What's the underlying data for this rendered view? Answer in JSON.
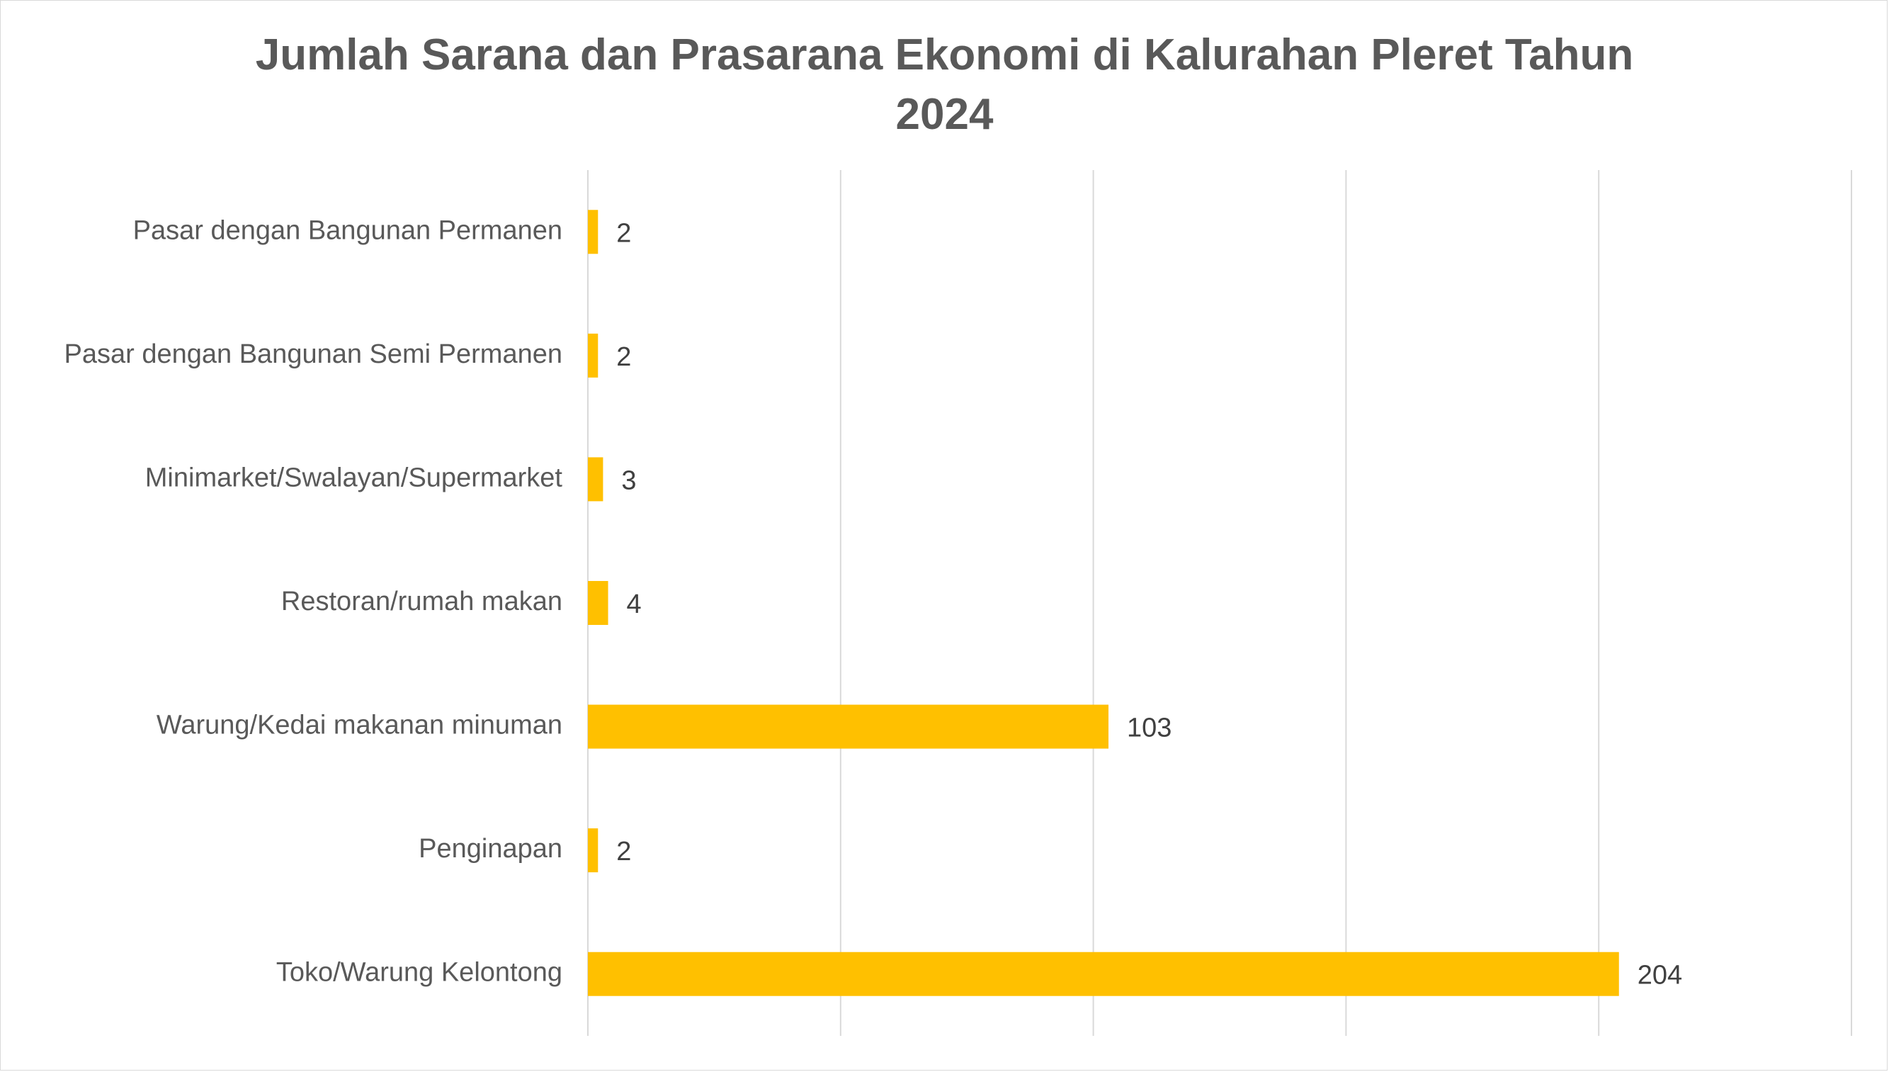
{
  "chart_data": {
    "type": "bar",
    "orientation": "horizontal",
    "title": "Jumlah Sarana dan Prasarana Ekonomi di Kalurahan Pleret Tahun 2024",
    "title_lines": [
      "Jumlah Sarana dan Prasarana Ekonomi di Kalurahan Pleret Tahun",
      "2024"
    ],
    "categories": [
      "Pasar dengan Bangunan Permanen",
      "Pasar dengan Bangunan Semi Permanen",
      "Minimarket/Swalayan/Supermarket",
      "Restoran/rumah makan",
      "Warung/Kedai makanan minuman",
      "Penginapan",
      "Toko/Warung Kelontong"
    ],
    "values": [
      2,
      2,
      3,
      4,
      103,
      2,
      204
    ],
    "data_labels": [
      "2",
      "2",
      "3",
      "4",
      "103",
      "2",
      "204"
    ],
    "xlim": [
      0,
      250
    ],
    "gridlines": [
      0,
      50,
      100,
      150,
      200,
      250
    ],
    "grid": true,
    "legend": "none",
    "bar_color": "#FFC000",
    "grid_color": "#D9D9D9",
    "text_color": "#595959"
  }
}
